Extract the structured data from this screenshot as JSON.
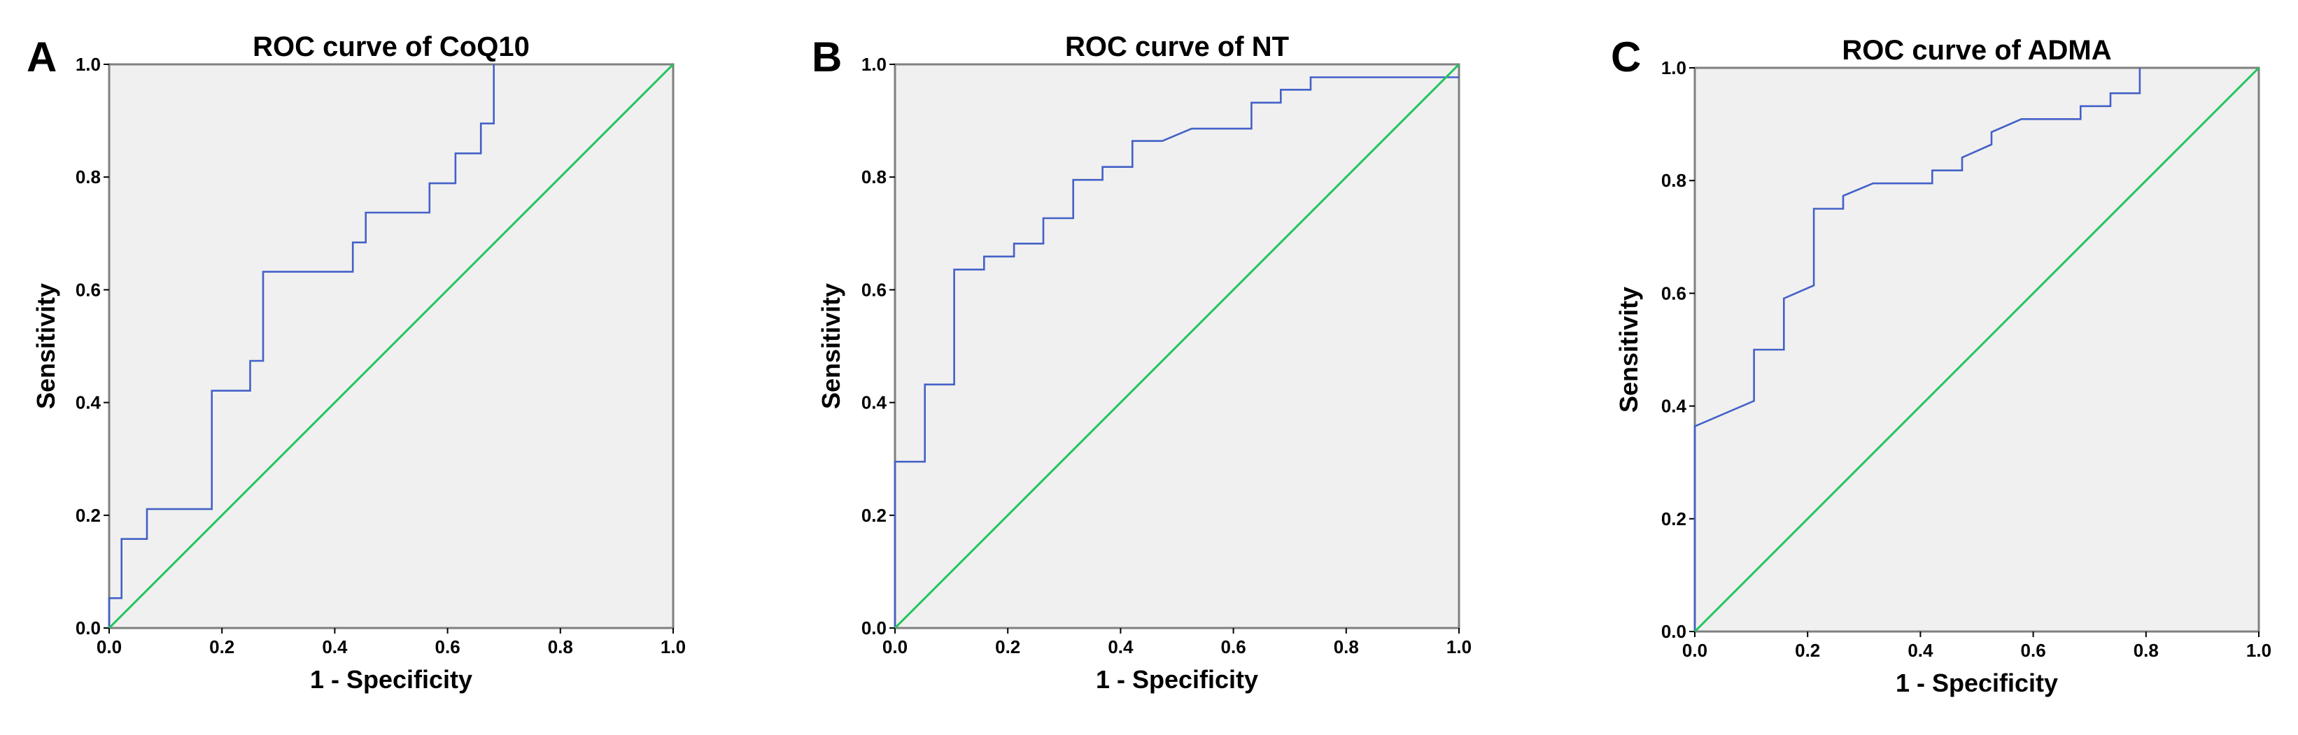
{
  "figure": {
    "background": "#ffffff",
    "plot_background": "#f0f0f0",
    "frame_color": "#7f7f7f",
    "curve_color": "#4361c7",
    "reference_color": "#21c55d"
  },
  "chart_data": [
    {
      "type": "line",
      "panel_letter": "A",
      "title": "ROC curve of CoQ10",
      "xlabel": "1 - Specificity",
      "ylabel": "Sensitivity",
      "xlim": [
        0,
        1
      ],
      "ylim": [
        0,
        1
      ],
      "xticks": [
        "0.0",
        "0.2",
        "0.4",
        "0.6",
        "0.8",
        "1.0"
      ],
      "yticks": [
        "0.0",
        "0.2",
        "0.4",
        "0.6",
        "0.8",
        "1.0"
      ],
      "grid": false,
      "series": [
        {
          "role": "roc",
          "x": [
            0,
            0,
            0.022,
            0.022,
            0.067,
            0.067,
            0.182,
            0.182,
            0.25,
            0.25,
            0.273,
            0.273,
            0.432,
            0.432,
            0.455,
            0.455,
            0.568,
            0.568,
            0.614,
            0.614,
            0.659,
            0.659,
            0.682,
            0.682
          ],
          "y": [
            0,
            0.053,
            0.053,
            0.158,
            0.158,
            0.211,
            0.211,
            0.421,
            0.421,
            0.474,
            0.474,
            0.632,
            0.632,
            0.684,
            0.684,
            0.737,
            0.737,
            0.789,
            0.789,
            0.842,
            0.842,
            0.895,
            0.895,
            1.0
          ]
        },
        {
          "role": "reference",
          "x": [
            0,
            1
          ],
          "y": [
            0,
            1
          ]
        }
      ]
    },
    {
      "type": "line",
      "panel_letter": "B",
      "title": "ROC curve of NT",
      "xlabel": "1 - Specificity",
      "ylabel": "Sensitivity",
      "xlim": [
        0,
        1
      ],
      "ylim": [
        0,
        1
      ],
      "xticks": [
        "0.0",
        "0.2",
        "0.4",
        "0.6",
        "0.8",
        "1.0"
      ],
      "yticks": [
        "0.0",
        "0.2",
        "0.4",
        "0.6",
        "0.8",
        "1.0"
      ],
      "grid": false,
      "series": [
        {
          "role": "roc",
          "x": [
            0,
            0,
            0.053,
            0.053,
            0.105,
            0.105,
            0.158,
            0.158,
            0.211,
            0.211,
            0.263,
            0.263,
            0.316,
            0.316,
            0.368,
            0.368,
            0.421,
            0.421,
            0.474,
            0.526,
            0.632,
            0.632,
            0.684,
            0.684,
            0.737,
            0.737,
            1.0
          ],
          "y": [
            0,
            0.295,
            0.295,
            0.432,
            0.432,
            0.636,
            0.636,
            0.659,
            0.659,
            0.682,
            0.682,
            0.727,
            0.727,
            0.795,
            0.795,
            0.818,
            0.818,
            0.864,
            0.864,
            0.886,
            0.886,
            0.932,
            0.932,
            0.955,
            0.955,
            0.977,
            0.977
          ]
        },
        {
          "role": "reference",
          "x": [
            0,
            1
          ],
          "y": [
            0,
            1
          ]
        }
      ]
    },
    {
      "type": "line",
      "panel_letter": "C",
      "title": "ROC curve of ADMA",
      "xlabel": "1 - Specificity",
      "ylabel": "Sensitivity",
      "xlim": [
        0,
        1
      ],
      "ylim": [
        0,
        1
      ],
      "xticks": [
        "0.0",
        "0.2",
        "0.4",
        "0.6",
        "0.8",
        "1.0"
      ],
      "yticks": [
        "0.0",
        "0.2",
        "0.4",
        "0.6",
        "0.8",
        "1.0"
      ],
      "grid": false,
      "series": [
        {
          "role": "roc",
          "x": [
            0,
            0,
            0.105,
            0.105,
            0.158,
            0.158,
            0.211,
            0.211,
            0.263,
            0.263,
            0.316,
            0.421,
            0.421,
            0.474,
            0.474,
            0.526,
            0.526,
            0.579,
            0.684,
            0.684,
            0.737,
            0.737,
            0.789,
            0.789
          ],
          "y": [
            0,
            0.364,
            0.409,
            0.5,
            0.5,
            0.591,
            0.614,
            0.75,
            0.75,
            0.773,
            0.795,
            0.795,
            0.818,
            0.818,
            0.841,
            0.864,
            0.886,
            0.909,
            0.909,
            0.932,
            0.932,
            0.955,
            0.955,
            1.0
          ]
        },
        {
          "role": "reference",
          "x": [
            0,
            1
          ],
          "y": [
            0,
            1
          ]
        }
      ]
    }
  ]
}
